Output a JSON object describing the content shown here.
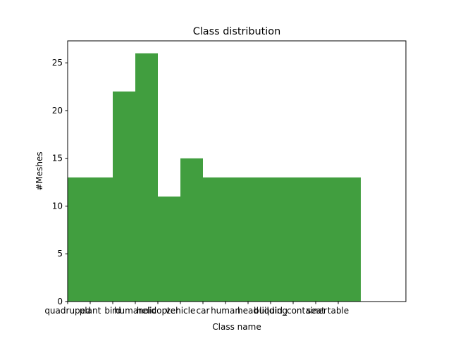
{
  "chart_data": {
    "type": "bar",
    "title": "Class distribution",
    "xlabel": "Class name",
    "ylabel": "#Meshes",
    "categories": [
      "quadruped",
      "plant",
      "bird",
      "humanoid",
      "helicopter",
      "vehicle",
      "car",
      "human",
      "head",
      "building",
      "liquid_container",
      "seat",
      "table"
    ],
    "values": [
      13,
      13,
      22,
      26,
      11,
      15,
      13,
      13,
      13,
      13,
      13,
      13,
      13
    ],
    "xlim": [
      0,
      15
    ],
    "ylim": [
      0,
      27.3
    ],
    "yticks": [
      0,
      5,
      10,
      15,
      20,
      25
    ],
    "bar_color": "#419e3f",
    "grid": false,
    "legend": "none"
  }
}
